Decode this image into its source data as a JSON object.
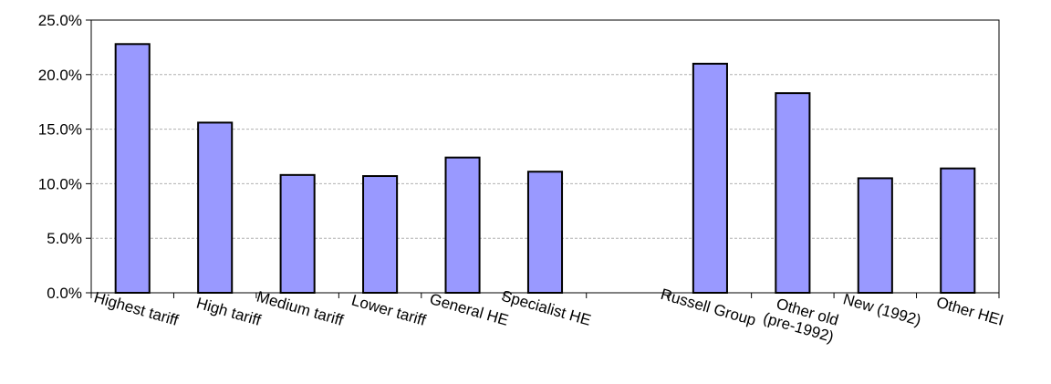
{
  "chart_data": {
    "type": "bar",
    "categories": [
      "Highest tariff",
      "High tariff",
      "Medium tariff",
      "Lower tariff",
      "General HE",
      "Specialist HE",
      "",
      "Russell Group",
      "Other old (pre-1992)",
      "New (1992)",
      "Other HEI"
    ],
    "values": [
      22.8,
      15.6,
      10.8,
      10.7,
      12.4,
      11.1,
      null,
      21.0,
      18.3,
      10.5,
      11.4
    ],
    "title": "",
    "xlabel": "",
    "ylabel": "",
    "ylim": [
      0,
      25
    ],
    "yticks": [
      "0.0%",
      "5.0%",
      "10.0%",
      "15.0%",
      "20.0%",
      "25.0%"
    ],
    "grid": true,
    "legend": "none",
    "bar_color": "#9999ff",
    "bar_edge_color": "#000000",
    "grid_color": "#b0b0b0"
  }
}
